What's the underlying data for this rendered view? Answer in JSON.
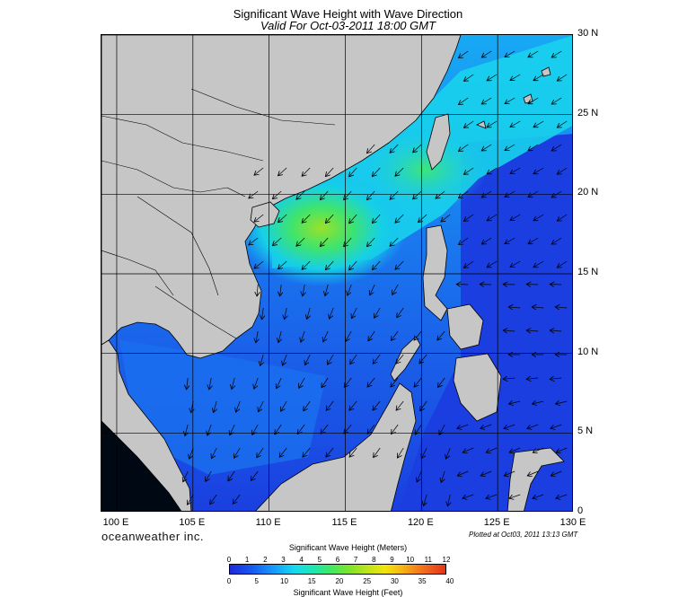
{
  "title": "Significant Wave Height with Wave Direction",
  "subtitle": "Valid For Oct-03-2011 18:00 GMT",
  "lon_labels": [
    "100 E",
    "105 E",
    "110 E",
    "115 E",
    "120 E",
    "125 E",
    "130 E"
  ],
  "lat_labels": [
    "30 N",
    "25 N",
    "20 N",
    "15 N",
    "10 N",
    "5 N",
    "0"
  ],
  "brand": "oceanweather inc.",
  "plotted": "Plotted at Oct03, 2011 13:13 GMT",
  "colorbar": {
    "title_top": "Significant Wave Height (Meters)",
    "title_bottom": "Significant Wave Height (Feet)",
    "meters": [
      "0",
      "1",
      "2",
      "3",
      "4",
      "5",
      "6",
      "7",
      "8",
      "9",
      "10",
      "11",
      "12"
    ],
    "feet": [
      "0",
      "5",
      "10",
      "15",
      "20",
      "25",
      "30",
      "35",
      "40"
    ]
  },
  "map": {
    "lon_range": [
      99,
      130
    ],
    "lat_range": [
      0,
      30
    ],
    "ocean_color": "#1a45e8",
    "land_color": "#c6c6c6"
  }
}
